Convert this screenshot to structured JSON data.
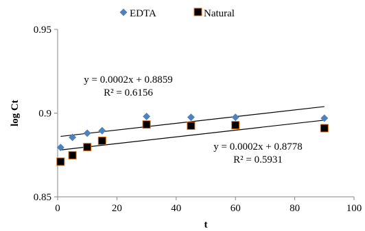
{
  "chart_data": {
    "type": "scatter",
    "title": "",
    "xlabel": "t",
    "ylabel": "log Ct",
    "xlim": [
      0,
      100
    ],
    "ylim": [
      0.85,
      0.95
    ],
    "x_ticks": [
      0,
      20,
      40,
      60,
      80,
      100
    ],
    "x_tick_labels": [
      "0",
      "20",
      "40",
      "60",
      "80",
      "100"
    ],
    "y_ticks": [
      0.85,
      0.9,
      0.95
    ],
    "y_tick_labels": [
      "0.85",
      "0.9",
      "0.95"
    ],
    "grid": false,
    "legend_position": "top",
    "series": [
      {
        "name": "EDTA",
        "marker": "diamond",
        "color": "#4f81bd",
        "x": [
          1,
          5,
          10,
          15,
          30,
          45,
          60,
          90
        ],
        "y": [
          0.8795,
          0.8855,
          0.888,
          0.8895,
          0.898,
          0.8975,
          0.8975,
          0.897
        ],
        "trendline": {
          "slope": 0.0002,
          "intercept": 0.8859
        },
        "equation": "y = 0.0002x + 0.8859",
        "r2": "R² = 0.6156"
      },
      {
        "name": "Natural",
        "marker": "square",
        "color": "#000000",
        "edge_color": "#e36c09",
        "x": [
          1,
          5,
          10,
          15,
          30,
          45,
          60,
          90
        ],
        "y": [
          0.871,
          0.8748,
          0.8797,
          0.8835,
          0.8932,
          0.8925,
          0.8928,
          0.891
        ],
        "trendline": {
          "slope": 0.0002,
          "intercept": 0.8778
        },
        "equation": "y = 0.0002x + 0.8778",
        "r2": "R² = 0.5931"
      }
    ]
  }
}
